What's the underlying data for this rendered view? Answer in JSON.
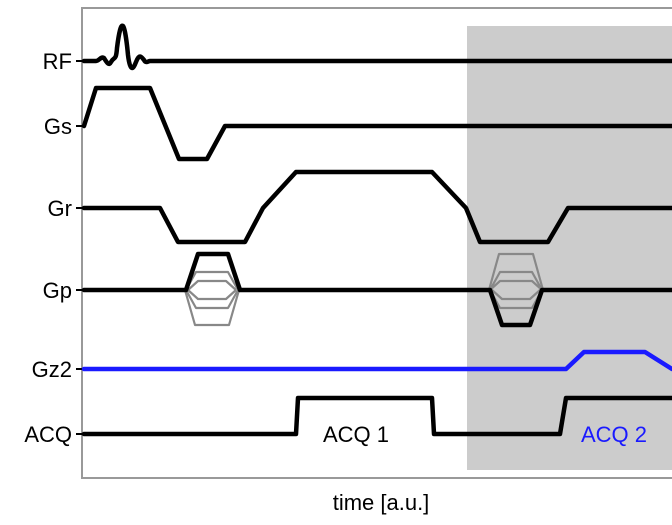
{
  "colors": {
    "signal": "#000000",
    "second_echo": "#1a1aff",
    "shaded_region": "#cccccc",
    "phase_steps": "#888888",
    "frame": "#999999"
  },
  "channels": {
    "rf": "RF",
    "gs": "Gs",
    "gr": "Gr",
    "gp": "Gp",
    "gz2": "Gz2",
    "acq": "ACQ"
  },
  "acquisitions": {
    "first": "ACQ 1",
    "second": "ACQ 2"
  },
  "xlabel": "time [a.u.]"
}
